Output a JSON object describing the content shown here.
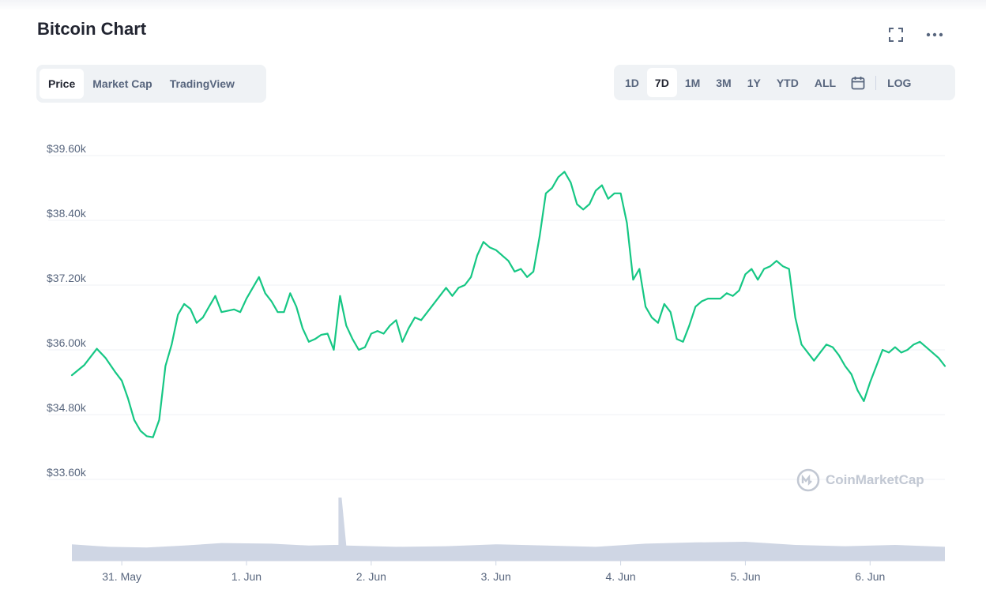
{
  "header": {
    "title": "Bitcoin Chart"
  },
  "tabs": [
    {
      "label": "Price",
      "active": true
    },
    {
      "label": "Market Cap",
      "active": false
    },
    {
      "label": "TradingView",
      "active": false
    }
  ],
  "ranges": {
    "items": [
      {
        "label": "1D",
        "active": false
      },
      {
        "label": "7D",
        "active": true
      },
      {
        "label": "1M",
        "active": false
      },
      {
        "label": "3M",
        "active": false
      },
      {
        "label": "1Y",
        "active": false
      },
      {
        "label": "YTD",
        "active": false
      },
      {
        "label": "ALL",
        "active": false
      }
    ],
    "log_label": "LOG"
  },
  "icons": {
    "fullscreen": "fullscreen-icon",
    "more": "more-icon",
    "calendar": "calendar-icon"
  },
  "watermark": "CoinMarketCap",
  "colors": {
    "line": "#16c784",
    "volume": "#cfd6e4",
    "grid": "#eff2f5",
    "text": "#58667e"
  },
  "chart_data": {
    "type": "line",
    "y_tick_labels": [
      "$39.60k",
      "$38.40k",
      "$37.20k",
      "$36.00k",
      "$34.80k",
      "$33.60k"
    ],
    "y_ticks": [
      39600,
      38400,
      37200,
      36000,
      34800,
      33600
    ],
    "ylim": [
      33600,
      39600
    ],
    "x_tick_labels": [
      "31. May",
      "1. Jun",
      "2. Jun",
      "3. Jun",
      "4. Jun",
      "5. Jun",
      "6. Jun"
    ],
    "x_ticks": [
      0,
      1,
      2,
      3,
      4,
      5,
      6
    ],
    "xlim": [
      -0.4,
      6.6
    ],
    "grid": true,
    "series": [
      {
        "values": [
          [
            -0.4,
            35530
          ],
          [
            -0.3,
            35720
          ],
          [
            -0.2,
            36020
          ],
          [
            -0.13,
            35850
          ],
          [
            -0.05,
            35580
          ],
          [
            0.0,
            35430
          ],
          [
            0.05,
            35100
          ],
          [
            0.1,
            34700
          ],
          [
            0.15,
            34500
          ],
          [
            0.2,
            34400
          ],
          [
            0.25,
            34380
          ],
          [
            0.3,
            34700
          ],
          [
            0.35,
            35700
          ],
          [
            0.4,
            36100
          ],
          [
            0.45,
            36650
          ],
          [
            0.5,
            36850
          ],
          [
            0.55,
            36760
          ],
          [
            0.6,
            36500
          ],
          [
            0.65,
            36600
          ],
          [
            0.7,
            36800
          ],
          [
            0.75,
            37000
          ],
          [
            0.8,
            36700
          ],
          [
            0.9,
            36750
          ],
          [
            0.95,
            36700
          ],
          [
            1.0,
            36950
          ],
          [
            1.05,
            37150
          ],
          [
            1.1,
            37350
          ],
          [
            1.15,
            37050
          ],
          [
            1.2,
            36900
          ],
          [
            1.25,
            36700
          ],
          [
            1.3,
            36700
          ],
          [
            1.35,
            37050
          ],
          [
            1.4,
            36800
          ],
          [
            1.45,
            36400
          ],
          [
            1.5,
            36150
          ],
          [
            1.55,
            36200
          ],
          [
            1.6,
            36280
          ],
          [
            1.65,
            36300
          ],
          [
            1.7,
            36000
          ],
          [
            1.75,
            37000
          ],
          [
            1.8,
            36450
          ],
          [
            1.85,
            36200
          ],
          [
            1.9,
            36000
          ],
          [
            1.95,
            36050
          ],
          [
            2.0,
            36300
          ],
          [
            2.05,
            36350
          ],
          [
            2.1,
            36300
          ],
          [
            2.15,
            36450
          ],
          [
            2.2,
            36550
          ],
          [
            2.25,
            36150
          ],
          [
            2.3,
            36400
          ],
          [
            2.35,
            36600
          ],
          [
            2.4,
            36550
          ],
          [
            2.45,
            36700
          ],
          [
            2.5,
            36850
          ],
          [
            2.55,
            37000
          ],
          [
            2.6,
            37150
          ],
          [
            2.65,
            37000
          ],
          [
            2.7,
            37150
          ],
          [
            2.75,
            37200
          ],
          [
            2.8,
            37350
          ],
          [
            2.85,
            37750
          ],
          [
            2.9,
            38000
          ],
          [
            2.95,
            37900
          ],
          [
            3.0,
            37850
          ],
          [
            3.05,
            37750
          ],
          [
            3.1,
            37650
          ],
          [
            3.15,
            37450
          ],
          [
            3.2,
            37500
          ],
          [
            3.25,
            37350
          ],
          [
            3.3,
            37450
          ],
          [
            3.35,
            38100
          ],
          [
            3.4,
            38900
          ],
          [
            3.45,
            39000
          ],
          [
            3.5,
            39200
          ],
          [
            3.55,
            39300
          ],
          [
            3.6,
            39100
          ],
          [
            3.65,
            38700
          ],
          [
            3.7,
            38600
          ],
          [
            3.75,
            38700
          ],
          [
            3.8,
            38950
          ],
          [
            3.85,
            39050
          ],
          [
            3.9,
            38800
          ],
          [
            3.95,
            38900
          ],
          [
            4.0,
            38900
          ],
          [
            4.05,
            38350
          ],
          [
            4.1,
            37300
          ],
          [
            4.15,
            37500
          ],
          [
            4.2,
            36800
          ],
          [
            4.25,
            36600
          ],
          [
            4.3,
            36500
          ],
          [
            4.35,
            36850
          ],
          [
            4.4,
            36700
          ],
          [
            4.45,
            36200
          ],
          [
            4.5,
            36150
          ],
          [
            4.55,
            36450
          ],
          [
            4.6,
            36800
          ],
          [
            4.65,
            36900
          ],
          [
            4.7,
            36950
          ],
          [
            4.75,
            36950
          ],
          [
            4.8,
            36950
          ],
          [
            4.85,
            37050
          ],
          [
            4.9,
            37000
          ],
          [
            4.95,
            37100
          ],
          [
            5.0,
            37400
          ],
          [
            5.05,
            37500
          ],
          [
            5.1,
            37300
          ],
          [
            5.15,
            37500
          ],
          [
            5.2,
            37550
          ],
          [
            5.25,
            37650
          ],
          [
            5.3,
            37550
          ],
          [
            5.35,
            37500
          ],
          [
            5.4,
            36600
          ],
          [
            5.45,
            36100
          ],
          [
            5.5,
            35950
          ],
          [
            5.55,
            35800
          ],
          [
            5.6,
            35950
          ],
          [
            5.65,
            36100
          ],
          [
            5.7,
            36050
          ],
          [
            5.75,
            35900
          ],
          [
            5.8,
            35700
          ],
          [
            5.85,
            35550
          ],
          [
            5.9,
            35250
          ],
          [
            5.95,
            35050
          ],
          [
            6.0,
            35400
          ],
          [
            6.05,
            35700
          ],
          [
            6.1,
            36000
          ],
          [
            6.15,
            35950
          ],
          [
            6.2,
            36050
          ],
          [
            6.25,
            35950
          ],
          [
            6.3,
            36000
          ],
          [
            6.35,
            36100
          ],
          [
            6.4,
            36150
          ],
          [
            6.45,
            36050
          ],
          [
            6.5,
            35950
          ],
          [
            6.55,
            35850
          ],
          [
            6.6,
            35700
          ]
        ],
        "color": "#16c784"
      }
    ],
    "volume": {
      "values": [
        [
          -0.4,
          0.26
        ],
        [
          -0.1,
          0.22
        ],
        [
          0.2,
          0.21
        ],
        [
          0.5,
          0.24
        ],
        [
          0.8,
          0.28
        ],
        [
          1.2,
          0.27
        ],
        [
          1.5,
          0.24
        ],
        [
          1.7,
          0.25
        ],
        [
          1.75,
          1.0
        ],
        [
          1.8,
          0.24
        ],
        [
          2.2,
          0.22
        ],
        [
          2.6,
          0.23
        ],
        [
          3.0,
          0.26
        ],
        [
          3.4,
          0.24
        ],
        [
          3.8,
          0.22
        ],
        [
          4.2,
          0.27
        ],
        [
          4.6,
          0.29
        ],
        [
          5.0,
          0.3
        ],
        [
          5.4,
          0.25
        ],
        [
          5.8,
          0.23
        ],
        [
          6.2,
          0.25
        ],
        [
          6.6,
          0.22
        ]
      ]
    }
  }
}
